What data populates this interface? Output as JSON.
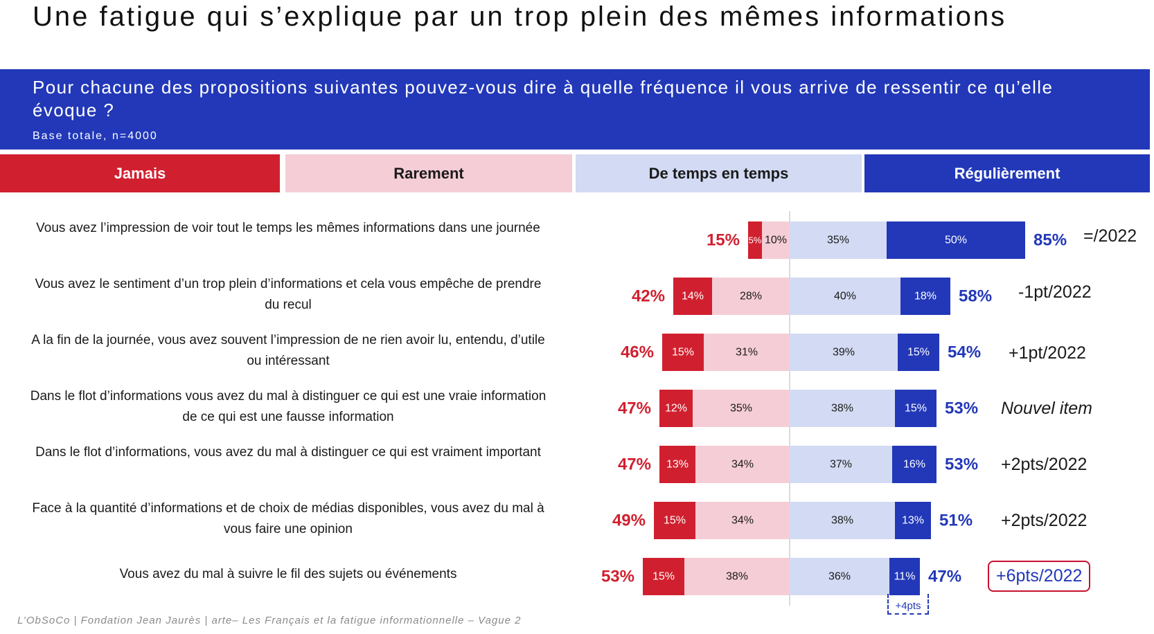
{
  "title": "Une fatigue qui s’explique par un trop plein des mêmes informations",
  "question": "Pour chacune des propositions suivantes pouvez-vous dire à quelle fréquence il vous arrive de ressentir ce qu’elle évoque ?",
  "base": "Base totale, n=4000",
  "legend": [
    "Jamais",
    "Rarement",
    "De temps en temps",
    "Régulièrement"
  ],
  "colors": {
    "jamais": "#d0202f",
    "rarement": "#f5cdd6",
    "de_temps_en_temps": "#d3daf3",
    "regulierement": "#2238b8",
    "accent": "#2238b8",
    "negative_total": "#d0202f"
  },
  "rows": [
    {
      "label": "Vous avez l’impression de voir tout le temps les mêmes informations dans une journée",
      "comment": "=/2022"
    },
    {
      "label": "Vous avez le sentiment d’un trop plein d’informations et cela vous empêche de prendre du recul",
      "comment": "-1pt/2022"
    },
    {
      "label": "A la fin de la journée, vous avez souvent l’impression de ne rien avoir lu, entendu, d’utile ou intéressant",
      "comment": "+1pt/2022"
    },
    {
      "label": "Dans le flot d’informations vous avez du mal à distinguer ce qui est une vraie information de ce qui est une fausse information",
      "comment": "Nouvel item"
    },
    {
      "label": "Dans le flot d’informations, vous avez du mal à distinguer ce qui est vraiment important",
      "comment": "+2pts/2022"
    },
    {
      "label": "Face à la quantité d’informations et de choix de médias disponibles, vous avez du mal à vous faire une opinion",
      "comment": "+2pts/2022"
    },
    {
      "label": "Vous avez du mal à suivre le fil des sujets ou événements",
      "comment": "+6pts/2022"
    }
  ],
  "delta_note": "+4pts",
  "footer": "L’ObSoCo | Fondation Jean Jaurès | arte– Les Français et la fatigue informationnelle – Vague 2",
  "chart_data": {
    "type": "bar",
    "subtype": "diverging-stacked-horizontal",
    "unit": "%",
    "categories": [
      "Vous avez l’impression de voir tout le temps les mêmes informations dans une journée",
      "Vous avez le sentiment d’un trop plein d’informations et cela vous empêche de prendre du recul",
      "A la fin de la journée, vous avez souvent l’impression de ne rien avoir lu, entendu, d’utile ou intéressant",
      "Dans le flot d’informations vous avez du mal à distinguer ce qui est une vraie information de ce qui est une fausse information",
      "Dans le flot d’informations, vous avez du mal à distinguer ce qui est vraiment important",
      "Face à la quantité d’informations et de choix de médias disponibles, vous avez du mal à vous faire une opinion",
      "Vous avez du mal à suivre le fil des sujets ou événements"
    ],
    "series": [
      {
        "name": "Jamais",
        "values": [
          5,
          14,
          15,
          12,
          13,
          15,
          15
        ]
      },
      {
        "name": "Rarement",
        "values": [
          10,
          28,
          31,
          35,
          34,
          34,
          38
        ]
      },
      {
        "name": "De temps en temps",
        "values": [
          35,
          40,
          39,
          38,
          37,
          38,
          36
        ]
      },
      {
        "name": "Régulièrement",
        "values": [
          50,
          18,
          15,
          15,
          16,
          13,
          11
        ]
      }
    ],
    "negative_totals": [
      15,
      42,
      46,
      47,
      47,
      49,
      53
    ],
    "positive_totals": [
      85,
      58,
      54,
      53,
      53,
      51,
      47
    ],
    "labels": {
      "values": [
        "5%",
        "10%",
        "35%",
        "50%",
        "14%",
        "28%",
        "40%",
        "18%",
        "15%",
        "31%",
        "39%",
        "15%",
        "12%",
        "35%",
        "38%",
        "15%",
        "13%",
        "34%",
        "37%",
        "16%",
        "15%",
        "34%",
        "38%",
        "13%",
        "15%",
        "38%",
        "36%",
        "11%"
      ],
      "negative_totals": [
        "15%",
        "42%",
        "46%",
        "47%",
        "47%",
        "49%",
        "53%"
      ],
      "positive_totals": [
        "85%",
        "58%",
        "54%",
        "53%",
        "53%",
        "51%",
        "47%"
      ]
    },
    "title": "Une fatigue qui s’explique par un trop plein des mêmes informations",
    "xlabel": "",
    "ylabel": "",
    "xlim": [
      -55,
      90
    ]
  }
}
